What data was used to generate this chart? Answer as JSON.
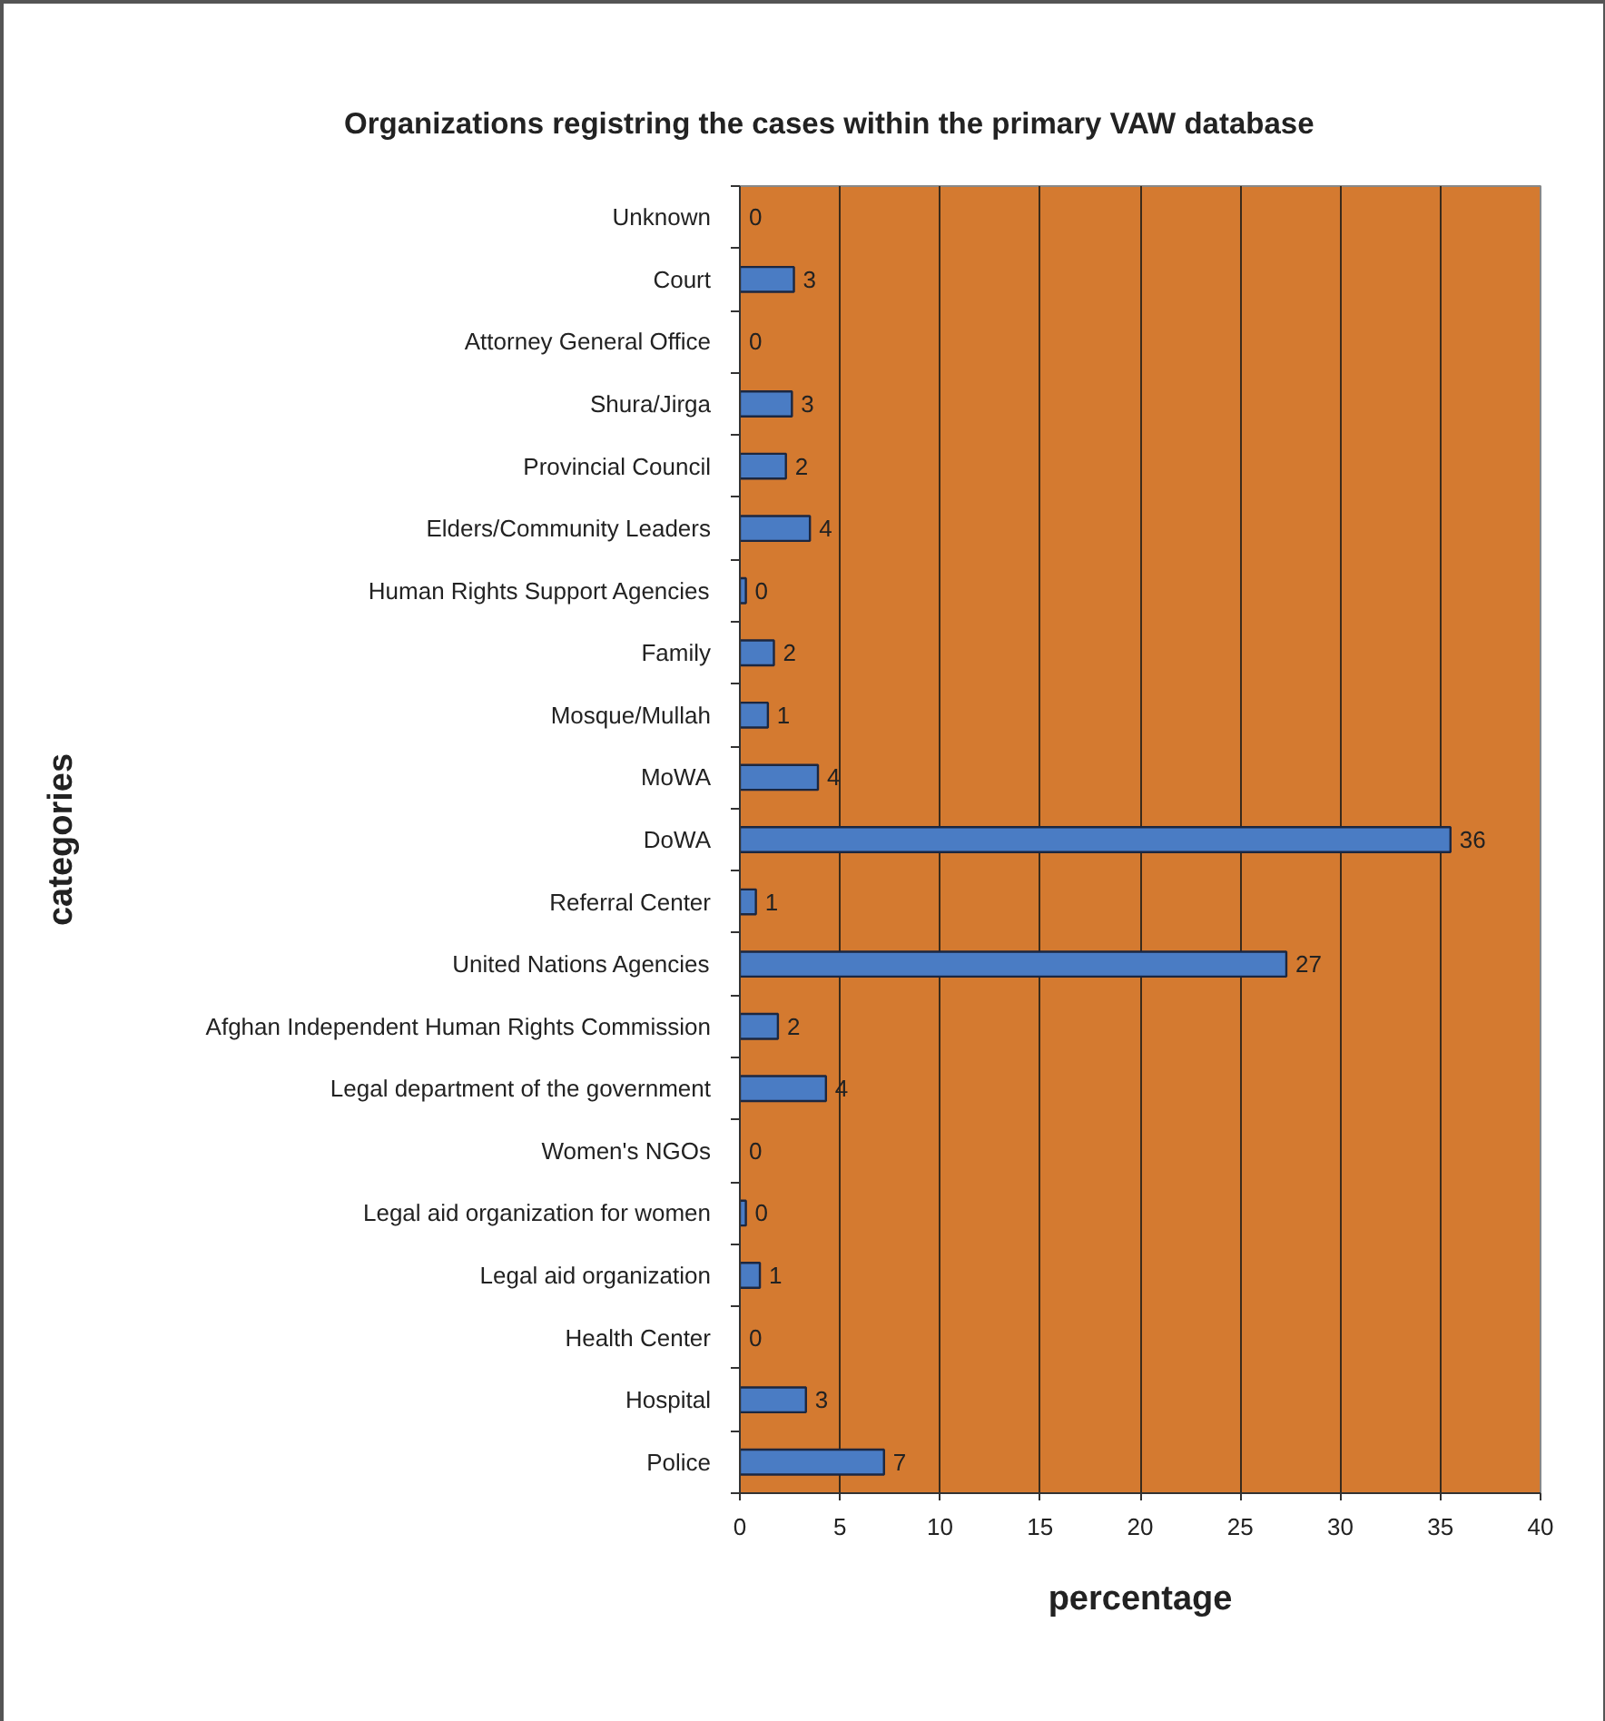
{
  "chart_data": {
    "type": "bar",
    "orientation": "horizontal",
    "title": "Organizations registring the cases within the primary VAW database",
    "xlabel": "percentage",
    "ylabel": "categories",
    "categories": [
      "Unknown",
      "Court",
      "Attorney General Office",
      "Shura/Jirga",
      "Provincial Council",
      "Elders/Community Leaders",
      "Human Rights Support Agencies",
      "Family",
      "Mosque/Mullah",
      "MoWA",
      "DoWA",
      "Referral Center",
      "United Nations Agencies",
      "Afghan Independent Human Rights Commission",
      "Legal department of the government",
      "Women's NGOs",
      "Legal aid organization for women",
      "Legal aid organization",
      "Health Center",
      "Hospital",
      "Police"
    ],
    "values": [
      0,
      2.7,
      0,
      2.6,
      2.3,
      3.5,
      0.3,
      1.7,
      1.4,
      3.9,
      35.5,
      0.8,
      27.3,
      1.9,
      4.3,
      0,
      0.3,
      1.0,
      0,
      3.3,
      7.2
    ],
    "value_labels": [
      "0",
      "3",
      "0",
      "3",
      "2",
      "4",
      "0",
      "2",
      "1",
      "4",
      "36",
      "1",
      "27",
      "2",
      "4",
      "0",
      "0",
      "1",
      "0",
      "3",
      "7"
    ],
    "color": "#4a7cc4",
    "xlim": [
      0,
      40
    ],
    "xticks": [
      0,
      5,
      10,
      15,
      20,
      25,
      30,
      35,
      40
    ],
    "grid": "x"
  }
}
